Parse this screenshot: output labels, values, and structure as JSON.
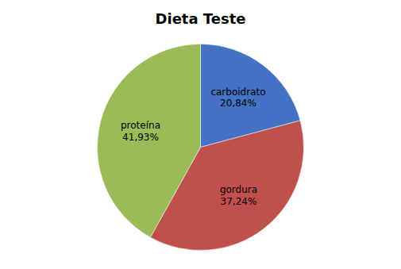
{
  "chart_data": {
    "type": "pie",
    "title": "Dieta Teste",
    "categories": [
      "carboidrato",
      "gordura",
      "proteína"
    ],
    "values": [
      20.84,
      37.24,
      41.93
    ],
    "value_labels": [
      "20,84%",
      "37,24%",
      "41,93%"
    ],
    "colors": [
      "#4472C4",
      "#C0504D",
      "#9BBB59"
    ],
    "data_labels": true
  }
}
